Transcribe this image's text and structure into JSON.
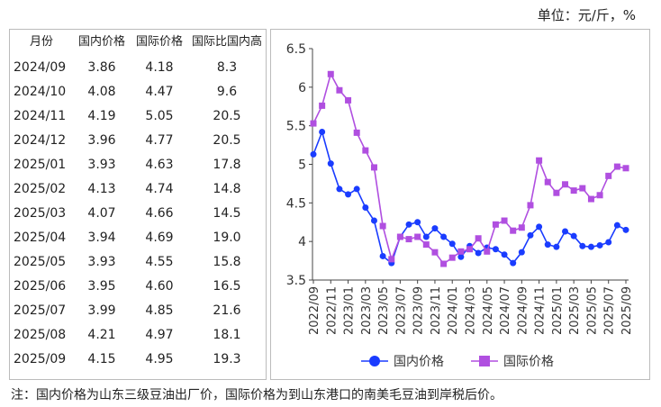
{
  "unit": "单位：元/斤，%",
  "note": "注：国内价格为山东三级豆油出厂价，国际价格为到山东港口的南美毛豆油到岸税后价。",
  "table": {
    "headers": [
      "月份",
      "国内价格",
      "国际价格",
      "国际比国内高"
    ],
    "rows": [
      [
        "2024/09",
        "3.86",
        "4.18",
        "8.3"
      ],
      [
        "2024/10",
        "4.08",
        "4.47",
        "9.6"
      ],
      [
        "2024/11",
        "4.19",
        "5.05",
        "20.5"
      ],
      [
        "2024/12",
        "3.96",
        "4.77",
        "20.5"
      ],
      [
        "2025/01",
        "3.93",
        "4.63",
        "17.8"
      ],
      [
        "2025/02",
        "4.13",
        "4.74",
        "14.8"
      ],
      [
        "2025/03",
        "4.07",
        "4.66",
        "14.5"
      ],
      [
        "2025/04",
        "3.94",
        "4.69",
        "19.0"
      ],
      [
        "2025/05",
        "3.93",
        "4.55",
        "15.8"
      ],
      [
        "2025/06",
        "3.95",
        "4.60",
        "16.5"
      ],
      [
        "2025/07",
        "3.99",
        "4.85",
        "21.6"
      ],
      [
        "2025/08",
        "4.21",
        "4.97",
        "18.1"
      ],
      [
        "2025/09",
        "4.15",
        "4.95",
        "19.3"
      ]
    ]
  },
  "chart_data": {
    "type": "line",
    "x": [
      "2022/09",
      "2022/10",
      "2022/11",
      "2022/12",
      "2023/01",
      "2023/02",
      "2023/03",
      "2023/04",
      "2023/05",
      "2023/06",
      "2023/07",
      "2023/08",
      "2023/09",
      "2023/10",
      "2023/11",
      "2023/12",
      "2024/01",
      "2024/02",
      "2024/03",
      "2024/04",
      "2024/05",
      "2024/06",
      "2024/07",
      "2024/08",
      "2024/09",
      "2024/10",
      "2024/11",
      "2024/12",
      "2025/01",
      "2025/02",
      "2025/03",
      "2025/04",
      "2025/05",
      "2025/06",
      "2025/07",
      "2025/08",
      "2025/09"
    ],
    "tick_labels": [
      "2022/09",
      "2022/11",
      "2023/01",
      "2023/03",
      "2023/05",
      "2023/07",
      "2023/09",
      "2023/11",
      "2024/01",
      "2024/03",
      "2024/05",
      "2024/07",
      "2024/09",
      "2024/11",
      "2025/01",
      "2025/03",
      "2025/05",
      "2025/07",
      "2025/09"
    ],
    "ylim": [
      3.5,
      6.5
    ],
    "yticks": [
      "3.5",
      "4",
      "4.5",
      "5",
      "5.5",
      "6",
      "6.5"
    ],
    "legend": "bottom",
    "grid": false,
    "series": [
      {
        "name": "国内价格",
        "color": "#1a3cff",
        "marker": "circle",
        "values": [
          5.13,
          5.42,
          5.01,
          4.68,
          4.61,
          4.68,
          4.44,
          4.27,
          3.81,
          3.72,
          4.06,
          4.22,
          4.25,
          4.06,
          4.17,
          4.06,
          3.97,
          3.8,
          3.94,
          3.85,
          3.92,
          3.9,
          3.83,
          3.72,
          3.86,
          4.08,
          4.19,
          3.96,
          3.93,
          4.13,
          4.07,
          3.94,
          3.93,
          3.95,
          3.99,
          4.21,
          4.15
        ]
      },
      {
        "name": "国际价格",
        "color": "#b04fe0",
        "marker": "square",
        "values": [
          5.53,
          5.76,
          6.17,
          5.96,
          5.83,
          5.41,
          5.18,
          4.96,
          4.2,
          3.77,
          4.06,
          4.03,
          4.06,
          3.96,
          3.86,
          3.71,
          3.79,
          3.87,
          3.9,
          4.04,
          3.87,
          4.22,
          4.27,
          4.14,
          4.18,
          4.47,
          5.05,
          4.77,
          4.63,
          4.74,
          4.66,
          4.69,
          4.55,
          4.6,
          4.85,
          4.97,
          4.95
        ]
      }
    ]
  }
}
